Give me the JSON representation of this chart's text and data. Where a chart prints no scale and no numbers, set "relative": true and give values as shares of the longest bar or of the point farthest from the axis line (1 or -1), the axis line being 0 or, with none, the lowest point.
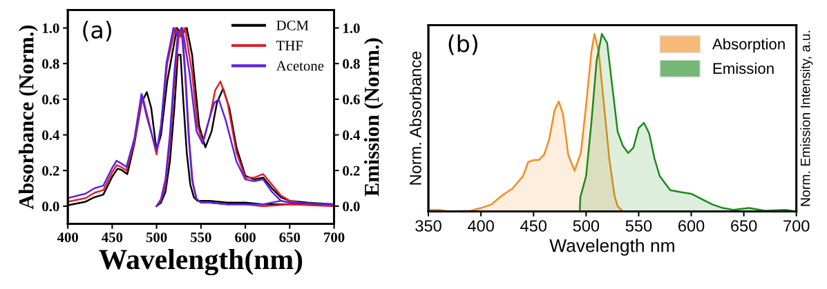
{
  "chart_data": [
    {
      "type": "line",
      "xlabel": "Wavelength(nm)",
      "ylabel": "Absorbance (Norm.)",
      "y2label": "Emission (Norm.)",
      "annotations": [
        "(a)"
      ],
      "xlim": [
        400,
        700
      ],
      "xticks": [
        400,
        450,
        500,
        550,
        600,
        650,
        700
      ],
      "ylim": [
        -0.1,
        1.1
      ],
      "yticks": [
        {
          "value": 0,
          "label": "0.0"
        },
        0.2,
        0.4,
        0.6,
        0.8,
        {
          "value": 1,
          "label": "1.0"
        }
      ],
      "y2lim": [
        -0.1,
        1.1
      ],
      "y2ticks": [
        {
          "value": 0,
          "label": "0.0"
        },
        0.2,
        0.4,
        0.6,
        0.8,
        {
          "value": 1,
          "label": "1.0"
        }
      ],
      "legend": "top right",
      "grid": false,
      "series": [
        {
          "name": "DCM",
          "color": "#000000",
          "x": [
            400,
            420,
            430,
            440,
            450,
            456,
            460,
            467,
            475,
            483,
            489,
            494,
            500,
            505,
            512,
            523,
            528,
            534,
            540,
            548,
            555,
            562,
            568,
            575,
            582,
            590,
            600,
            610,
            620,
            630,
            640,
            650,
            670,
            700
          ],
          "values": [
            0.005,
            0.025,
            0.05,
            0.065,
            0.165,
            0.21,
            0.205,
            0.18,
            0.35,
            0.58,
            0.64,
            0.55,
            0.31,
            0.4,
            0.7,
            1.0,
            0.96,
            1.0,
            0.85,
            0.45,
            0.33,
            0.42,
            0.58,
            0.66,
            0.55,
            0.33,
            0.17,
            0.15,
            0.16,
            0.1,
            0.05,
            0.03,
            0.02,
            0.01
          ]
        },
        {
          "name": "THF",
          "color": "#e0202a",
          "x": [
            400,
            420,
            430,
            440,
            450,
            455,
            460,
            466,
            475,
            484,
            490,
            500,
            505,
            512,
            521,
            527,
            532,
            540,
            546,
            552,
            560,
            566,
            572,
            580,
            590,
            600,
            610,
            620,
            630,
            640,
            650,
            670,
            700
          ],
          "values": [
            0.025,
            0.045,
            0.075,
            0.09,
            0.19,
            0.23,
            0.22,
            0.2,
            0.36,
            0.62,
            0.5,
            0.29,
            0.45,
            0.8,
            1.0,
            0.95,
            1.0,
            0.75,
            0.45,
            0.36,
            0.5,
            0.65,
            0.7,
            0.58,
            0.3,
            0.16,
            0.16,
            0.18,
            0.12,
            0.06,
            0.03,
            0.01,
            0.01
          ]
        },
        {
          "name": "Acetone",
          "color": "#5a22e6",
          "x": [
            400,
            420,
            430,
            440,
            450,
            455,
            460,
            466,
            475,
            483,
            489,
            500,
            505,
            511,
            519,
            524,
            529,
            537,
            545,
            552,
            560,
            565,
            570,
            578,
            590,
            600,
            610,
            620,
            630,
            640,
            650,
            670,
            700
          ],
          "values": [
            0.045,
            0.07,
            0.1,
            0.115,
            0.215,
            0.255,
            0.24,
            0.22,
            0.38,
            0.63,
            0.5,
            0.31,
            0.45,
            0.8,
            1.0,
            0.95,
            1.0,
            0.75,
            0.42,
            0.35,
            0.5,
            0.58,
            0.6,
            0.48,
            0.25,
            0.15,
            0.14,
            0.15,
            0.08,
            0.03,
            0.02,
            0.01,
            0.01
          ]
        },
        {
          "color": "#000000",
          "axis": "y2",
          "x": [
            500,
            505,
            510,
            515,
            520,
            524,
            527,
            530,
            534,
            538,
            542,
            546,
            550,
            560,
            580,
            600,
            620,
            650,
            700
          ],
          "values": [
            0.0,
            0.02,
            0.08,
            0.25,
            0.55,
            0.85,
            0.85,
            0.6,
            0.3,
            0.12,
            0.05,
            0.03,
            0.03,
            0.03,
            0.02,
            0.02,
            0.01,
            0.01,
            0.01
          ]
        },
        {
          "color": "#e0202a",
          "axis": "y2",
          "x": [
            500,
            505,
            510,
            515,
            520,
            525,
            529,
            533,
            537,
            541,
            545,
            550,
            560,
            580,
            600,
            620,
            650,
            700
          ],
          "values": [
            0.0,
            0.03,
            0.12,
            0.35,
            0.7,
            0.95,
            1.0,
            0.7,
            0.35,
            0.12,
            0.04,
            0.02,
            0.02,
            0.01,
            0.01,
            0.0,
            0.01,
            0.0
          ]
        },
        {
          "color": "#5a22e6",
          "axis": "y2",
          "x": [
            500,
            505,
            510,
            515,
            520,
            524,
            528,
            532,
            536,
            540,
            545,
            550,
            560,
            580,
            600,
            620,
            640,
            650,
            700
          ],
          "values": [
            0.0,
            0.04,
            0.15,
            0.4,
            0.75,
            0.97,
            1.0,
            0.75,
            0.4,
            0.15,
            0.04,
            0.02,
            0.02,
            0.01,
            0.01,
            0.01,
            0.03,
            0.02,
            0.01
          ]
        }
      ]
    },
    {
      "type": "area",
      "xlabel": "Wavelength nm",
      "ylabel": "Norm. Absorbance",
      "y2label": "Norm. Emission Intensity, a.u.",
      "annotations": [
        "(b)"
      ],
      "relative": true,
      "xlim": [
        350,
        700
      ],
      "xticks": [
        350,
        400,
        450,
        500,
        550,
        600,
        650,
        700
      ],
      "legend": "top right",
      "grid": false,
      "series": [
        {
          "name": "Absorption",
          "color": "#f28c1e",
          "x": [
            350,
            355,
            360,
            370,
            390,
            400,
            410,
            420,
            430,
            440,
            445,
            450,
            455,
            460,
            465,
            470,
            474,
            478,
            483,
            489,
            495,
            500,
            505,
            508,
            512,
            517,
            522,
            527,
            530,
            535
          ],
          "values": [
            0.01,
            0.01,
            0.01,
            0.0,
            0.005,
            0.02,
            0.04,
            0.09,
            0.13,
            0.2,
            0.28,
            0.29,
            0.29,
            0.32,
            0.41,
            0.57,
            0.62,
            0.55,
            0.32,
            0.23,
            0.33,
            0.6,
            0.9,
            1.0,
            0.9,
            0.6,
            0.3,
            0.09,
            0.03,
            0.0
          ]
        },
        {
          "name": "Emission",
          "color": "#1a8a1a",
          "axis": "y2",
          "x": [
            494,
            494.5,
            500,
            505,
            510,
            515,
            520,
            525,
            530,
            535,
            540,
            545,
            550,
            555,
            560,
            565,
            570,
            575,
            580,
            590,
            600,
            610,
            620,
            630,
            640,
            655,
            670,
            690,
            700
          ],
          "values": [
            0.0,
            0.08,
            0.2,
            0.5,
            0.85,
            1.0,
            0.95,
            0.7,
            0.45,
            0.37,
            0.33,
            0.36,
            0.47,
            0.5,
            0.44,
            0.3,
            0.2,
            0.16,
            0.12,
            0.11,
            0.1,
            0.07,
            0.04,
            0.02,
            0.01,
            0.02,
            0.005,
            0.01,
            0.0
          ]
        }
      ]
    }
  ]
}
